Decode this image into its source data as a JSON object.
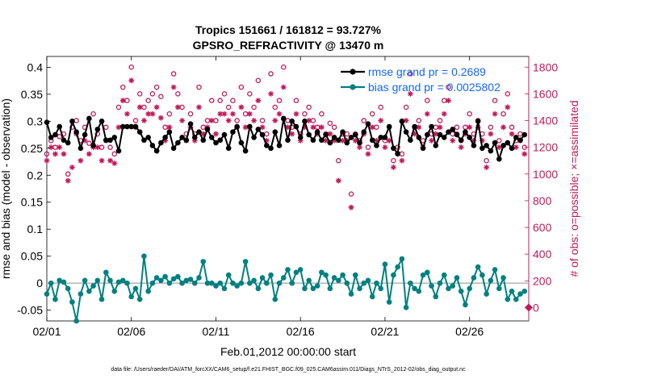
{
  "chart_data": {
    "type": "line",
    "title_line1": "Tropics 151661 / 161812 = 93.727%",
    "title_line2": "GPSRO_REFRACTIVITY @ 13470 m",
    "xlabel": "Feb.01,2012 00:00:00 start",
    "ylabel_left": "rmse and bias (model - observation)",
    "ylabel_right": "# of obs: o=possible; ×=assimilated",
    "footnote": "data file: /Users/raeder/DAI/ATM_forcXX/CAM6_setup/f.e21.FHIST_BGC.f09_025.CAM6assim.011/Diags_NTrS_2012-02/obs_diag_output.nc",
    "xlim": [
      1,
      29.5
    ],
    "ylim_left": [
      -0.07,
      0.42
    ],
    "ylim_right": [
      -100,
      1880
    ],
    "x_ticks": [
      1,
      6,
      11,
      16,
      21,
      26
    ],
    "x_tick_labels": [
      "02/01",
      "02/06",
      "02/11",
      "02/16",
      "02/21",
      "02/26"
    ],
    "y_ticks_left": [
      -0.05,
      0,
      0.05,
      0.1,
      0.15,
      0.2,
      0.25,
      0.3,
      0.35,
      0.4
    ],
    "y_tick_labels_left": [
      "-0.05",
      "0",
      "0.05",
      "0.1",
      "0.15",
      "0.2",
      "0.25",
      "0.3",
      "0.35",
      "0.4"
    ],
    "y_ticks_right": [
      0,
      200,
      400,
      600,
      800,
      1000,
      1200,
      1400,
      1600,
      1800
    ],
    "y_tick_labels_right": [
      "0",
      "200",
      "400",
      "600",
      "800",
      "1000",
      "1200",
      "1400",
      "1600",
      "1800"
    ],
    "legend": [
      "rmse grand pr = 0.2689",
      "bias grand pr = 0.0025802"
    ],
    "colors": {
      "rmse": "#000000",
      "bias": "#008080",
      "obs": "#c2185b",
      "zero": "#b3b3b3",
      "legend_text": "#1565ff"
    },
    "x": [
      1.0,
      1.25,
      1.5,
      1.75,
      2.0,
      2.25,
      2.5,
      2.75,
      3.0,
      3.25,
      3.5,
      3.75,
      4.0,
      4.25,
      4.5,
      4.75,
      5.0,
      5.25,
      5.5,
      5.75,
      6.0,
      6.25,
      6.5,
      6.75,
      7.0,
      7.25,
      7.5,
      7.75,
      8.0,
      8.25,
      8.5,
      8.75,
      9.0,
      9.25,
      9.5,
      9.75,
      10.0,
      10.25,
      10.5,
      10.75,
      11.0,
      11.25,
      11.5,
      11.75,
      12.0,
      12.25,
      12.5,
      12.75,
      13.0,
      13.25,
      13.5,
      13.75,
      14.0,
      14.25,
      14.5,
      14.75,
      15.0,
      15.25,
      15.5,
      15.75,
      16.0,
      16.25,
      16.5,
      16.75,
      17.0,
      17.25,
      17.5,
      17.75,
      18.0,
      18.25,
      18.5,
      18.75,
      19.0,
      19.25,
      19.5,
      19.75,
      20.0,
      20.25,
      20.5,
      20.75,
      21.0,
      21.25,
      21.5,
      21.75,
      22.0,
      22.25,
      22.5,
      22.75,
      23.0,
      23.25,
      23.5,
      23.75,
      24.0,
      24.25,
      24.5,
      24.75,
      25.0,
      25.25,
      25.5,
      25.75,
      26.0,
      26.25,
      26.5,
      26.75,
      27.0,
      27.25,
      27.5,
      27.75,
      28.0,
      28.25,
      28.5,
      28.75,
      29.0,
      29.25
    ],
    "series": [
      {
        "name": "rmse",
        "axis": "left",
        "values": [
          0.298,
          0.27,
          0.275,
          0.29,
          0.265,
          0.26,
          0.3,
          0.28,
          0.25,
          0.275,
          0.305,
          0.255,
          0.285,
          0.3,
          0.265,
          0.265,
          0.27,
          0.245,
          0.29,
          0.29,
          0.29,
          0.29,
          0.28,
          0.265,
          0.27,
          0.255,
          0.245,
          0.26,
          0.27,
          0.28,
          0.25,
          0.26,
          0.27,
          0.265,
          0.295,
          0.27,
          0.28,
          0.265,
          0.285,
          0.27,
          0.26,
          0.265,
          0.275,
          0.25,
          0.28,
          0.29,
          0.26,
          0.245,
          0.29,
          0.27,
          0.285,
          0.275,
          0.255,
          0.25,
          0.28,
          0.255,
          0.305,
          0.265,
          0.3,
          0.29,
          0.27,
          0.3,
          0.275,
          0.265,
          0.28,
          0.265,
          0.275,
          0.26,
          0.27,
          0.265,
          0.28,
          0.26,
          0.27,
          0.275,
          0.26,
          0.28,
          0.295,
          0.265,
          0.255,
          0.27,
          0.27,
          0.29,
          0.25,
          0.24,
          0.3,
          0.28,
          0.265,
          0.29,
          0.27,
          0.25,
          0.275,
          0.29,
          0.255,
          0.275,
          0.27,
          0.28,
          0.285,
          0.275,
          0.265,
          0.28,
          0.27,
          0.255,
          0.3,
          0.25,
          0.255,
          0.245,
          0.26,
          0.23,
          0.255,
          0.26,
          0.25,
          0.27,
          0.265,
          0.275
        ]
      },
      {
        "name": "bias",
        "axis": "left",
        "values": [
          -0.02,
          0.0,
          -0.03,
          0.005,
          0.002,
          -0.01,
          -0.035,
          -0.07,
          -0.02,
          0.005,
          -0.015,
          -0.005,
          0.005,
          -0.03,
          0.02,
          0.005,
          -0.015,
          0.002,
          0.005,
          0.0,
          -0.025,
          -0.01,
          -0.03,
          0.05,
          -0.015,
          0.0,
          0.01,
          0.005,
          0.012,
          0.0,
          0.008,
          0.012,
          0.0,
          0.005,
          0.007,
          0.0,
          0.01,
          0.04,
          0.0,
          0.0,
          -0.005,
          0.0,
          -0.01,
          0.015,
          0.0,
          -0.005,
          0.0,
          0.04,
          0.0,
          0.005,
          -0.01,
          0.01,
          0.0,
          0.015,
          -0.03,
          0.0,
          0.01,
          0.025,
          0.0,
          0.02,
          0.025,
          -0.01,
          0.005,
          -0.01,
          -0.005,
          0.02,
          0.015,
          -0.01,
          0.01,
          0.005,
          0.015,
          0.0,
          -0.02,
          0.015,
          -0.01,
          0.0,
          0.005,
          -0.025,
          0.0,
          -0.01,
          0.035,
          -0.035,
          0.015,
          0.03,
          0.045,
          -0.045,
          0.0,
          -0.01,
          -0.015,
          0.015,
          0.02,
          -0.005,
          -0.025,
          0.0,
          0.015,
          -0.01,
          -0.005,
          0.01,
          -0.015,
          -0.04,
          -0.01,
          0.01,
          0.03,
          0.015,
          -0.02,
          0.005,
          0.025,
          -0.01,
          0.01,
          -0.03,
          -0.015,
          -0.03,
          -0.02,
          -0.015
        ]
      },
      {
        "name": "possible",
        "axis": "right",
        "values": [
          1150,
          1250,
          1200,
          1280,
          1300,
          1000,
          1350,
          1400,
          1250,
          1350,
          1230,
          1450,
          1300,
          1200,
          1350,
          1200,
          1150,
          1500,
          1650,
          1550,
          1800,
          1400,
          1600,
          1500,
          1550,
          1600,
          1650,
          1580,
          1350,
          1450,
          1750,
          1600,
          1500,
          1300,
          1450,
          1300,
          1650,
          1350,
          1400,
          1550,
          1400,
          1550,
          1600,
          1500,
          1550,
          1400,
          1650,
          1450,
          1600,
          1500,
          1700,
          1400,
          1300,
          1750,
          1500,
          1550,
          1800,
          1400,
          1350,
          1550,
          1300,
          1450,
          1500,
          1400,
          1350,
          1450,
          1300,
          1380,
          1350,
          1100,
          1300,
          1300,
          850,
          1300,
          1250,
          1400,
          1200,
          1450,
          1350,
          1500,
          1250,
          1350,
          1100,
          1200,
          1150,
          1500,
          1750,
          1350,
          1400,
          1250,
          1550,
          1300,
          1350,
          1400,
          1550,
          1650,
          1300,
          1350,
          1250,
          1350,
          1450,
          1300,
          1400,
          1300,
          1100,
          1350,
          1550,
          1250,
          1450,
          1600,
          1350,
          1250,
          1300,
          1200
        ]
      },
      {
        "name": "assimilated",
        "axis": "right",
        "values": [
          1100,
          1200,
          1150,
          1200,
          1150,
          950,
          1050,
          1300,
          1100,
          1250,
          1150,
          1200,
          1200,
          1100,
          1250,
          1100,
          1080,
          1350,
          1550,
          1450,
          1700,
          1350,
          1500,
          1400,
          1450,
          1450,
          1500,
          1420,
          1250,
          1350,
          1650,
          1500,
          1400,
          1250,
          1350,
          1250,
          1500,
          1300,
          1350,
          1400,
          1300,
          1450,
          1450,
          1400,
          1450,
          1350,
          1500,
          1350,
          1450,
          1400,
          1550,
          1350,
          1250,
          1600,
          1400,
          1450,
          1650,
          1350,
          1300,
          1450,
          1250,
          1350,
          1400,
          1350,
          1300,
          1350,
          1250,
          1300,
          1250,
          950,
          1250,
          1250,
          750,
          1250,
          1200,
          1300,
          1150,
          1350,
          1250,
          1400,
          1200,
          1250,
          1050,
          1150,
          1100,
          1400,
          1600,
          1300,
          1350,
          1200,
          1450,
          1250,
          1300,
          1350,
          1450,
          1550,
          1250,
          1300,
          1200,
          1300,
          1350,
          1250,
          1350,
          1250,
          1050,
          1300,
          1450,
          1200,
          1350,
          1500,
          1300,
          1200,
          1250,
          1150
        ]
      }
    ],
    "right_axis_marker": {
      "x": 29.5,
      "value": 0
    }
  }
}
